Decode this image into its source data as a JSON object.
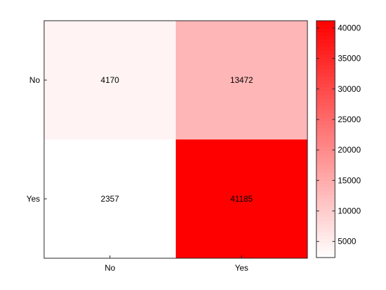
{
  "chart_data": {
    "type": "heatmap",
    "x_categories": [
      "No",
      "Yes"
    ],
    "y_categories": [
      "No",
      "Yes"
    ],
    "values": [
      [
        4170,
        13472
      ],
      [
        2357,
        41185
      ]
    ],
    "colorbar": {
      "range": [
        2357,
        41185
      ],
      "ticks": [
        5000,
        10000,
        15000,
        20000,
        25000,
        30000,
        35000,
        40000
      ],
      "min_color": "#ffffff",
      "max_color": "#ff0000"
    },
    "title": "",
    "xlabel": "",
    "ylabel": ""
  }
}
